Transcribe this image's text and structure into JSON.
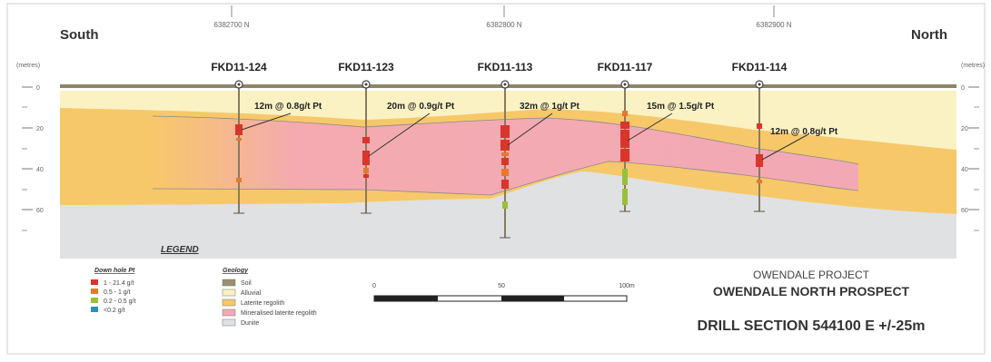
{
  "header": {
    "south": "South",
    "north": "North",
    "eastings": [
      "6382700 N",
      "6382800 N",
      "6382900 N"
    ],
    "units_left": "(metres)",
    "units_right": "(metres)"
  },
  "depth_ticks": [
    "0",
    "20",
    "40",
    "60"
  ],
  "holes": [
    {
      "id": "FKD11-124",
      "intercept": "12m @ 0.8g/t Pt"
    },
    {
      "id": "FKD11-123",
      "intercept": "20m @ 0.9g/t Pt"
    },
    {
      "id": "FKD11-113",
      "intercept": "32m @ 1g/t Pt"
    },
    {
      "id": "FKD11-117",
      "intercept": "15m @ 1.5g/t Pt"
    },
    {
      "id": "FKD11-114",
      "intercept": "12m @ 0.8g/t Pt"
    }
  ],
  "legend": {
    "title": "LEGEND",
    "downhole_title": "Down hole Pt",
    "downhole": [
      {
        "label": "1 - 21.4 g/t",
        "color": "#d9352a"
      },
      {
        "label": "0.5 - 1 g/t",
        "color": "#e8792b"
      },
      {
        "label": "0.2 - 0.5 g/t",
        "color": "#9cbf3a"
      },
      {
        "label": "<0.2 g/t",
        "color": "#2a8fbf"
      }
    ],
    "geology_title": "Geology",
    "geology": [
      {
        "label": "Soil",
        "color": "#9a8f6e"
      },
      {
        "label": "Alluvial",
        "color": "#fbf2c4"
      },
      {
        "label": "Laterite regolith",
        "color": "#f7c86a"
      },
      {
        "label": "Mineralised laterite regolith",
        "color": "#f3a9b5"
      },
      {
        "label": "Dunite",
        "color": "#dfe1e3"
      }
    ]
  },
  "scale": {
    "labels": [
      "0",
      "50",
      "100m"
    ]
  },
  "title_block": {
    "project": "OWENDALE PROJECT",
    "prospect": "OWENDALE NORTH PROSPECT",
    "section": "DRILL SECTION 544100 E +/-25m"
  }
}
